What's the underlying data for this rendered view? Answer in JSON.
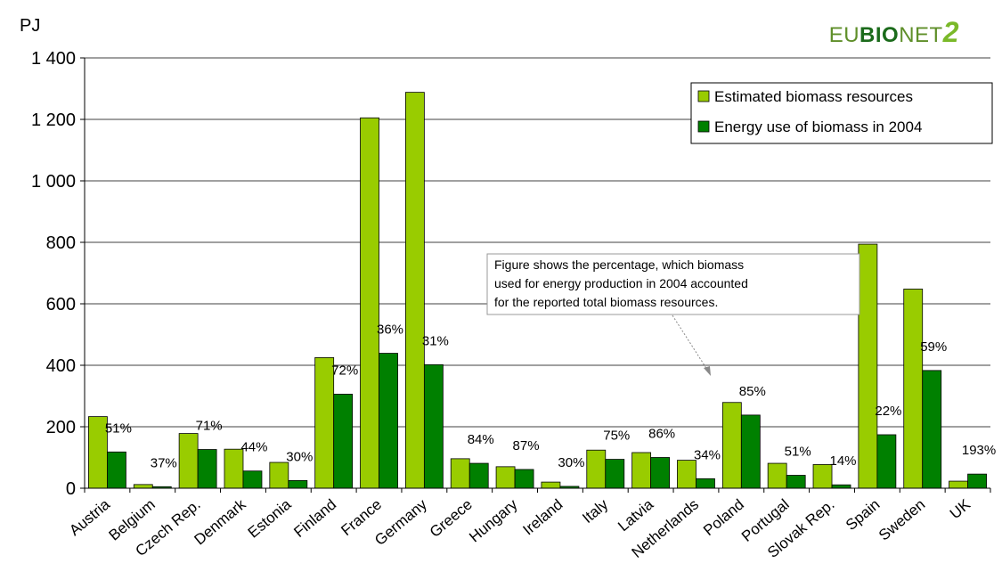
{
  "logo": {
    "eu": "EU",
    "bio": "BIO",
    "net": "NET",
    "two": "2"
  },
  "chart_data": {
    "type": "bar",
    "ylabel": "PJ",
    "ylim": [
      0,
      1400
    ],
    "yticks": [
      0,
      200,
      400,
      600,
      800,
      1000,
      1200,
      1400
    ],
    "ytick_labels": [
      "0",
      "200",
      "400",
      "600",
      "800",
      "1 000",
      "1 200",
      "1 400"
    ],
    "grid": "horizontal",
    "legend_position": "top-right",
    "categories": [
      "Austria",
      "Belgium",
      "Czech Rep.",
      "Denmark",
      "Estonia",
      "Finland",
      "France",
      "Germany",
      "Greece",
      "Hungary",
      "Ireland",
      "Italy",
      "Latvia",
      "Netherlands",
      "Poland",
      "Portugal",
      "Slovak Rep.",
      "Spain",
      "Sweden",
      "UK"
    ],
    "series": [
      {
        "name": "Estimated biomass resources",
        "color": "#99cc00",
        "values": [
          233,
          12,
          178,
          127,
          84,
          425,
          1205,
          1288,
          96,
          70,
          20,
          124,
          116,
          91,
          279,
          81,
          77,
          794,
          648,
          23
        ]
      },
      {
        "name": "Energy use of biomass in 2004",
        "color": "#008000",
        "values": [
          118,
          5,
          126,
          56,
          25,
          306,
          439,
          402,
          81,
          61,
          6,
          94,
          100,
          31,
          238,
          42,
          11,
          174,
          383,
          46
        ]
      }
    ],
    "percent_labels": [
      "51%",
      "37%",
      "71%",
      "44%",
      "30%",
      "72%",
      "36%",
      "31%",
      "84%",
      "87%",
      "30%",
      "75%",
      "86%",
      "34%",
      "85%",
      "51%",
      "14%",
      "22%",
      "59%",
      "193%"
    ],
    "annotation": "Figure shows the percentage, which biomass used for energy production in 2004 accounted for the reported total biomass resources.",
    "annotation_lines": [
      "Figure shows the percentage, which biomass",
      "used for energy production in 2004 accounted",
      "for the reported total biomass resources."
    ]
  }
}
